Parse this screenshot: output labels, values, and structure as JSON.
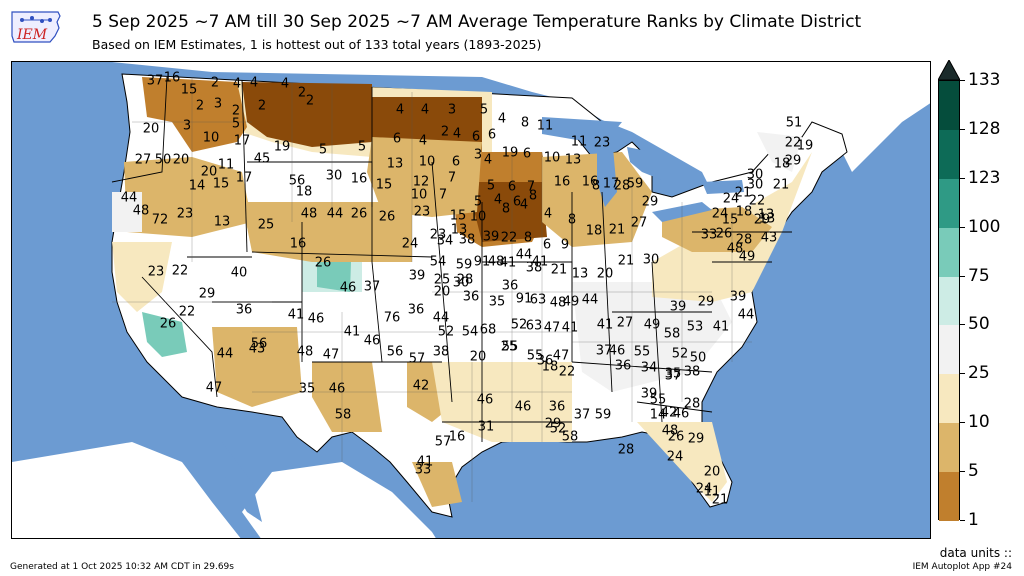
{
  "header": {
    "logo_text": "IEM",
    "title": "5 Sep 2025 ~7 AM till 30 Sep 2025 ~7 AM Average Temperature Ranks by Climate District",
    "subtitle": "Based on IEM Estimates, 1 is hottest out of 133 total years (1893-2025)"
  },
  "colorbar": {
    "ticks": [
      "133",
      "128",
      "123",
      "100",
      "75",
      "50",
      "25",
      "10",
      "5",
      "1"
    ],
    "colors": [
      "#054d3c",
      "#0d6b57",
      "#2f9a85",
      "#79cbb9",
      "#cdece5",
      "#f2f2f2",
      "#f7e8bf",
      "#dcb56a",
      "#c07f2d",
      "#8a4a0a"
    ],
    "units_label": "data units ::"
  },
  "map": {
    "ocean_color": "#6c9bd2",
    "land_color": "#ffffff",
    "ranks": [
      {
        "t": "37"
      },
      {
        "t": "16"
      },
      {
        "t": "15"
      },
      {
        "t": "2"
      },
      {
        "t": "4"
      },
      {
        "t": "4"
      },
      {
        "t": "4"
      },
      {
        "t": "2"
      },
      {
        "t": "2"
      },
      {
        "t": "3"
      },
      {
        "t": "2"
      },
      {
        "t": "2"
      },
      {
        "t": "20"
      },
      {
        "t": "3"
      },
      {
        "t": "10"
      },
      {
        "t": "17"
      },
      {
        "t": "5"
      },
      {
        "t": "2"
      },
      {
        "t": "19"
      },
      {
        "t": "5"
      },
      {
        "t": "5"
      },
      {
        "t": "4"
      },
      {
        "t": "4"
      },
      {
        "t": "3"
      },
      {
        "t": "5"
      },
      {
        "t": "4"
      },
      {
        "t": "8"
      },
      {
        "t": "11"
      },
      {
        "t": "6"
      },
      {
        "t": "6"
      },
      {
        "t": "4"
      },
      {
        "t": "2"
      },
      {
        "t": "4"
      },
      {
        "t": "6"
      },
      {
        "t": "3"
      },
      {
        "t": "4"
      },
      {
        "t": "6"
      },
      {
        "t": "10"
      },
      {
        "t": "13"
      },
      {
        "t": "11"
      },
      {
        "t": "23"
      },
      {
        "t": "27"
      },
      {
        "t": "50"
      },
      {
        "t": "20"
      },
      {
        "t": "20"
      },
      {
        "t": "11"
      },
      {
        "t": "45"
      },
      {
        "t": "13"
      },
      {
        "t": "10"
      },
      {
        "t": "6"
      },
      {
        "t": "19"
      },
      {
        "t": "14"
      },
      {
        "t": "15"
      },
      {
        "t": "17"
      },
      {
        "t": "56"
      },
      {
        "t": "30"
      },
      {
        "t": "16"
      },
      {
        "t": "15"
      },
      {
        "t": "12"
      },
      {
        "t": "7"
      },
      {
        "t": "5"
      },
      {
        "t": "6"
      },
      {
        "t": "7"
      },
      {
        "t": "16"
      },
      {
        "t": "8"
      },
      {
        "t": "17"
      },
      {
        "t": "28"
      },
      {
        "t": "59"
      },
      {
        "t": "44"
      },
      {
        "t": "18"
      },
      {
        "t": "10"
      },
      {
        "t": "7"
      },
      {
        "t": "5"
      },
      {
        "t": "4"
      },
      {
        "t": "6"
      },
      {
        "t": "8"
      },
      {
        "t": "16"
      },
      {
        "t": "29"
      },
      {
        "t": "48"
      },
      {
        "t": "72"
      },
      {
        "t": "23"
      },
      {
        "t": "48"
      },
      {
        "t": "44"
      },
      {
        "t": "26"
      },
      {
        "t": "26"
      },
      {
        "t": "23"
      },
      {
        "t": "15"
      },
      {
        "t": "10"
      },
      {
        "t": "8"
      },
      {
        "t": "4"
      },
      {
        "t": "4"
      },
      {
        "t": "8"
      },
      {
        "t": "13"
      },
      {
        "t": "25"
      },
      {
        "t": "16"
      },
      {
        "t": "13"
      },
      {
        "t": "39"
      },
      {
        "t": "22"
      },
      {
        "t": "8"
      },
      {
        "t": "6"
      },
      {
        "t": "9"
      },
      {
        "t": "18"
      },
      {
        "t": "21"
      },
      {
        "t": "27"
      },
      {
        "t": "23"
      },
      {
        "t": "34"
      },
      {
        "t": "38"
      },
      {
        "t": "48"
      },
      {
        "t": "44"
      },
      {
        "t": "41"
      },
      {
        "t": "23"
      },
      {
        "t": "22"
      },
      {
        "t": "26"
      },
      {
        "t": "24"
      },
      {
        "t": "54"
      },
      {
        "t": "59"
      },
      {
        "t": "91"
      },
      {
        "t": "41"
      },
      {
        "t": "36"
      },
      {
        "t": "38"
      },
      {
        "t": "21"
      },
      {
        "t": "13"
      },
      {
        "t": "20"
      },
      {
        "t": "21"
      },
      {
        "t": "30"
      },
      {
        "t": "39"
      },
      {
        "t": "25"
      },
      {
        "t": "28"
      },
      {
        "t": "30"
      },
      {
        "t": "29"
      },
      {
        "t": "40"
      },
      {
        "t": "46"
      },
      {
        "t": "37"
      },
      {
        "t": "20"
      },
      {
        "t": "36"
      },
      {
        "t": "35"
      },
      {
        "t": "91"
      },
      {
        "t": "63"
      },
      {
        "t": "48"
      },
      {
        "t": "49"
      },
      {
        "t": "44"
      },
      {
        "t": "26"
      },
      {
        "t": "22"
      },
      {
        "t": "36"
      },
      {
        "t": "41"
      },
      {
        "t": "46"
      },
      {
        "t": "41"
      },
      {
        "t": "76"
      },
      {
        "t": "36"
      },
      {
        "t": "44"
      },
      {
        "t": "52"
      },
      {
        "t": "63"
      },
      {
        "t": "47"
      },
      {
        "t": "41"
      },
      {
        "t": "41"
      },
      {
        "t": "27"
      },
      {
        "t": "49"
      },
      {
        "t": "39"
      },
      {
        "t": "29"
      },
      {
        "t": "39"
      },
      {
        "t": "44"
      },
      {
        "t": "52"
      },
      {
        "t": "54"
      },
      {
        "t": "68"
      },
      {
        "t": "55"
      },
      {
        "t": "58"
      },
      {
        "t": "53"
      },
      {
        "t": "41"
      },
      {
        "t": "56"
      },
      {
        "t": "44"
      },
      {
        "t": "43"
      },
      {
        "t": "48"
      },
      {
        "t": "47"
      },
      {
        "t": "46"
      },
      {
        "t": "38"
      },
      {
        "t": "20"
      },
      {
        "t": "25"
      },
      {
        "t": "55"
      },
      {
        "t": "36"
      },
      {
        "t": "47"
      },
      {
        "t": "37"
      },
      {
        "t": "46"
      },
      {
        "t": "55"
      },
      {
        "t": "52"
      },
      {
        "t": "50"
      },
      {
        "t": "35"
      },
      {
        "t": "47"
      },
      {
        "t": "35"
      },
      {
        "t": "46"
      },
      {
        "t": "56"
      },
      {
        "t": "57"
      },
      {
        "t": "18"
      },
      {
        "t": "22"
      },
      {
        "t": "36"
      },
      {
        "t": "34"
      },
      {
        "t": "37"
      },
      {
        "t": "38"
      },
      {
        "t": "39"
      },
      {
        "t": "55"
      },
      {
        "t": "58"
      },
      {
        "t": "42"
      },
      {
        "t": "46"
      },
      {
        "t": "46"
      },
      {
        "t": "36"
      },
      {
        "t": "37"
      },
      {
        "t": "59"
      },
      {
        "t": "14"
      },
      {
        "t": "42"
      },
      {
        "t": "48"
      },
      {
        "t": "46"
      },
      {
        "t": "28"
      },
      {
        "t": "31"
      },
      {
        "t": "29"
      },
      {
        "t": "52"
      },
      {
        "t": "58"
      },
      {
        "t": "28"
      },
      {
        "t": "26"
      },
      {
        "t": "29"
      },
      {
        "t": "24"
      },
      {
        "t": "16"
      },
      {
        "t": "57"
      },
      {
        "t": "41"
      },
      {
        "t": "33"
      },
      {
        "t": "24"
      },
      {
        "t": "21"
      },
      {
        "t": "20"
      },
      {
        "t": "11"
      },
      {
        "t": "22"
      },
      {
        "t": "29"
      },
      {
        "t": "18"
      },
      {
        "t": "30"
      },
      {
        "t": "21"
      },
      {
        "t": "21"
      },
      {
        "t": "22"
      },
      {
        "t": "24"
      },
      {
        "t": "24"
      },
      {
        "t": "18"
      },
      {
        "t": "15"
      },
      {
        "t": "13"
      },
      {
        "t": "13"
      },
      {
        "t": "29"
      },
      {
        "t": "51"
      },
      {
        "t": "19"
      },
      {
        "t": "30"
      },
      {
        "t": "33"
      },
      {
        "t": "26"
      },
      {
        "t": "28"
      },
      {
        "t": "48"
      },
      {
        "t": "49"
      },
      {
        "t": "43"
      }
    ]
  },
  "footer": {
    "generated": "Generated at 1 Oct 2025 10:32 AM CDT in 29.69s",
    "app": "IEM Autoplot App #24"
  }
}
